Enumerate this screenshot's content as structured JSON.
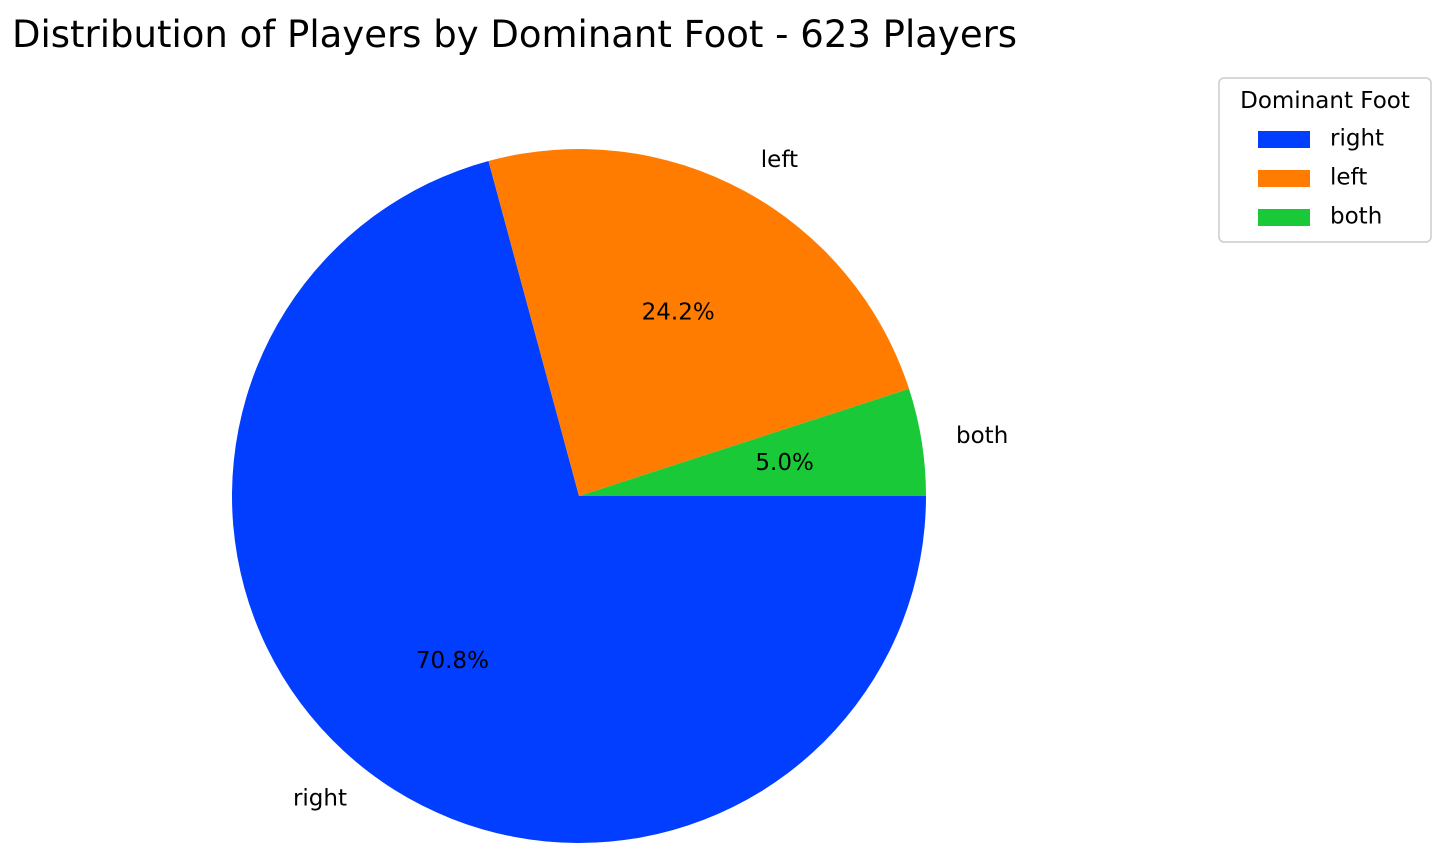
{
  "chart_data": {
    "type": "pie",
    "title": "Distribution of Players by Dominant Foot - 623 Players",
    "start_angle_deg": 0,
    "direction": "clockwise",
    "legend_placement": "upper-right, outside plot",
    "slices": [
      {
        "label": "right",
        "percent": 70.8,
        "percent_label": "70.8%",
        "color": "#023eff"
      },
      {
        "label": "left",
        "percent": 24.2,
        "percent_label": "24.2%",
        "color": "#ff7c00"
      },
      {
        "label": "both",
        "percent": 5.0,
        "percent_label": "5.0%",
        "color": "#1ac938"
      }
    ],
    "legend": {
      "title": "Dominant Foot",
      "entries": [
        "right",
        "left",
        "both"
      ]
    }
  }
}
